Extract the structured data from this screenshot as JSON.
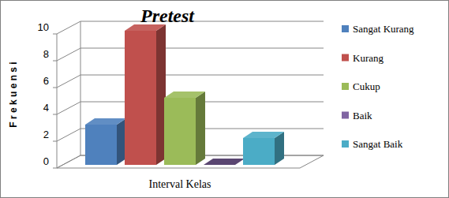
{
  "chart_data": {
    "type": "bar",
    "title": "Pretest",
    "y_label": "F r e k u e n s i",
    "categories": [
      "Interval Kelas"
    ],
    "series": [
      {
        "name": "Sangat Kurang",
        "color": "#4f81bd",
        "values": [
          3
        ]
      },
      {
        "name": "Kurang",
        "color": "#c0504d",
        "values": [
          10
        ]
      },
      {
        "name": "Cukup",
        "color": "#9bbb59",
        "values": [
          5
        ]
      },
      {
        "name": "Baik",
        "color": "#8064a2",
        "values": [
          0
        ]
      },
      {
        "name": "Sangat Baik",
        "color": "#4bacc6",
        "values": [
          2
        ]
      }
    ],
    "ylim": [
      0,
      10
    ],
    "yticks": [
      0,
      2,
      4,
      6,
      8,
      10
    ],
    "grid": true,
    "legend": "right"
  }
}
